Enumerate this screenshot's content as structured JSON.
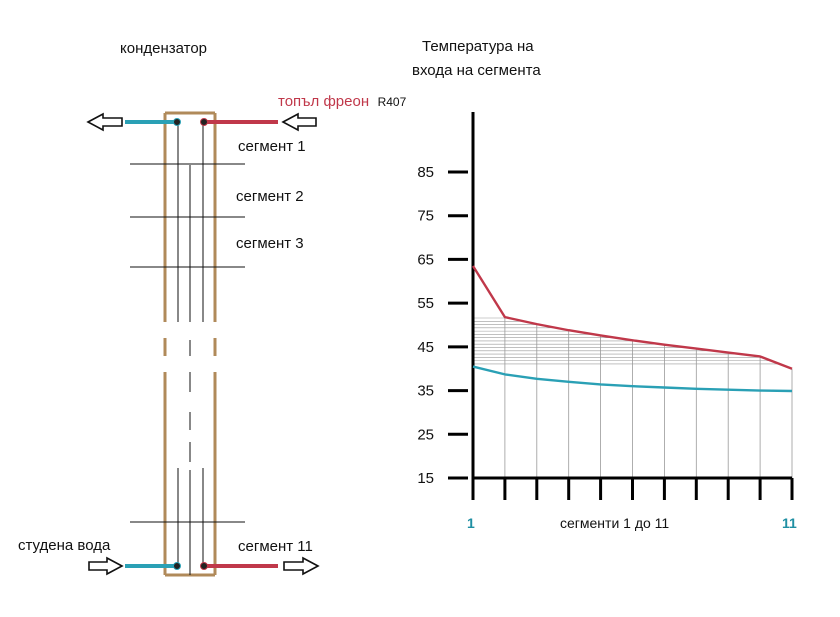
{
  "condenser": {
    "title": "кондензатор",
    "hot_freon_label": "топъл фреон",
    "refrigerant_code": "R407",
    "cold_water_label": "студена вода",
    "segments": [
      "сегмент 1",
      "сегмент 2",
      "сегмент 3"
    ],
    "last_segment": "сегмент 11"
  },
  "colors": {
    "hot": "#c0384a",
    "cold": "#2aa0b5",
    "shell": "#b08a5a",
    "grid": "#9a9a9a"
  },
  "chart_data": {
    "type": "line",
    "title": "Температура на входа на сегмента",
    "title_lines": [
      "Температура на",
      "входа на сегмента"
    ],
    "xlabel": "сегменти 1 до 11",
    "x_start_label": "1",
    "x_end_label": "11",
    "ylim": [
      15,
      85
    ],
    "yticks": [
      15,
      25,
      35,
      45,
      55,
      65,
      75,
      85
    ],
    "x": [
      1,
      2,
      3,
      4,
      5,
      6,
      7,
      8,
      9,
      10,
      11
    ],
    "series": [
      {
        "color": "#c0384a",
        "values": [
          63.5,
          51.8,
          50.2,
          48.8,
          47.6,
          46.5,
          45.5,
          44.6,
          43.7,
          42.8,
          40.0
        ]
      },
      {
        "color": "#2aa0b5",
        "values": [
          40.5,
          38.7,
          37.7,
          37.0,
          36.4,
          36.0,
          35.7,
          35.4,
          35.2,
          35.0,
          34.9
        ]
      }
    ],
    "grid": true
  }
}
